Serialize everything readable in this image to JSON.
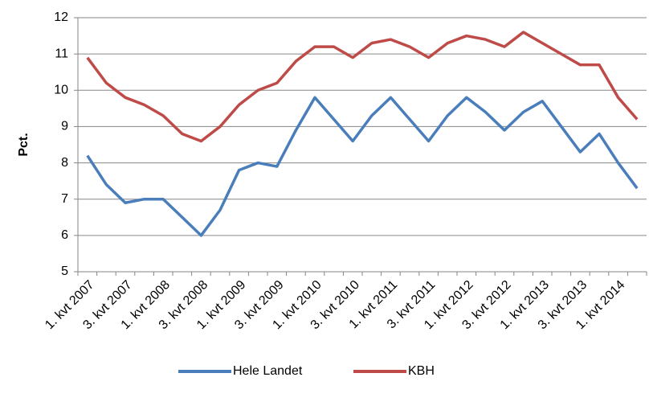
{
  "chart_data": {
    "type": "line",
    "y_label": "Pct.",
    "categories": [
      "1. kvt 2007",
      null,
      "3. kvt 2007",
      null,
      "1. kvt 2008",
      null,
      "3. kvt 2008",
      null,
      "1. kvt 2009",
      null,
      "3. kvt 2009",
      null,
      "1. kvt 2010",
      null,
      "3. kvt 2010",
      null,
      "1. kvt 2011",
      null,
      "3. kvt 2011",
      null,
      "1. kvt 2012",
      null,
      "3. kvt 2012",
      null,
      "1. kvt 2013",
      null,
      "3. kvt 2013",
      null,
      "1. kvt 2014",
      null
    ],
    "series": [
      {
        "name": "Hele Landet",
        "color": "#4a7ebb",
        "values": [
          8.2,
          7.4,
          6.9,
          7.0,
          7.0,
          6.5,
          6.0,
          6.7,
          7.8,
          8.0,
          7.9,
          8.9,
          9.8,
          9.2,
          8.6,
          9.3,
          9.8,
          9.2,
          8.6,
          9.3,
          9.8,
          9.4,
          8.9,
          9.4,
          9.7,
          9.0,
          8.3,
          8.8,
          8.0,
          7.3
        ]
      },
      {
        "name": "KBH",
        "color": "#be4b48",
        "values": [
          10.9,
          10.2,
          9.8,
          9.6,
          9.3,
          8.8,
          8.6,
          9.0,
          9.6,
          10.0,
          10.2,
          10.8,
          11.2,
          11.2,
          10.9,
          11.3,
          11.4,
          11.2,
          10.9,
          11.3,
          11.5,
          11.4,
          11.2,
          11.6,
          11.3,
          11.0,
          10.7,
          10.7,
          9.8,
          9.2
        ]
      }
    ],
    "ylim": [
      5,
      12
    ],
    "yticks": [
      5,
      6,
      7,
      8,
      9,
      10,
      11,
      12
    ],
    "grid": true,
    "legend": "bottom"
  }
}
